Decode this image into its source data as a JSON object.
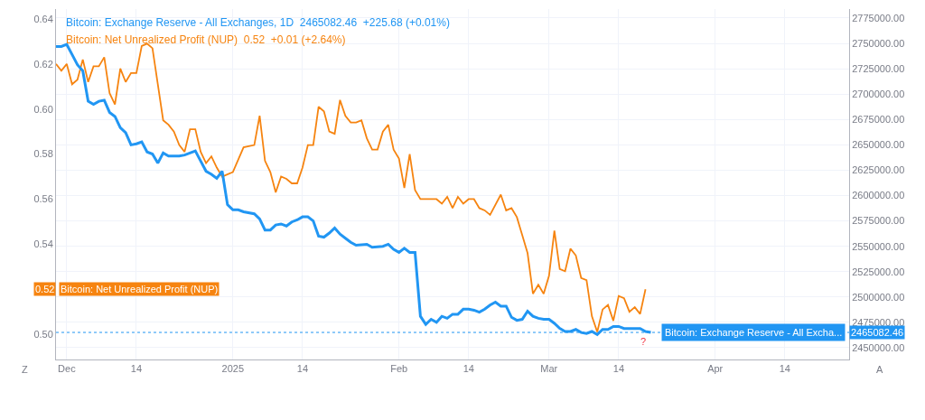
{
  "chart_data": {
    "type": "line",
    "series": [
      {
        "name": "Bitcoin: Exchange Reserve - All Exchanges, 1D",
        "color": "#2196f3",
        "axis": "y2",
        "x": [
          "2024-11-29",
          "2024-11-30",
          "2024-12-01",
          "2024-12-02",
          "2024-12-03",
          "2024-12-04",
          "2024-12-05",
          "2024-12-06",
          "2024-12-07",
          "2024-12-08",
          "2024-12-09",
          "2024-12-10",
          "2024-12-11",
          "2024-12-12",
          "2024-12-13",
          "2024-12-14",
          "2024-12-15",
          "2024-12-16",
          "2024-12-17",
          "2024-12-18",
          "2024-12-19",
          "2024-12-20",
          "2024-12-22",
          "2024-12-23",
          "2024-12-25",
          "2024-12-26",
          "2024-12-27",
          "2024-12-28",
          "2024-12-29",
          "2024-12-30",
          "2024-12-31",
          "2025-01-01",
          "2025-01-02",
          "2025-01-03",
          "2025-01-05",
          "2025-01-06",
          "2025-01-07",
          "2025-01-08",
          "2025-01-09",
          "2025-01-10",
          "2025-01-11",
          "2025-01-12",
          "2025-01-13",
          "2025-01-14",
          "2025-01-15",
          "2025-01-16",
          "2025-01-17",
          "2025-01-18",
          "2025-01-19",
          "2025-01-20",
          "2025-01-21",
          "2025-01-22",
          "2025-01-23",
          "2025-01-24",
          "2025-01-26",
          "2025-01-27",
          "2025-01-29",
          "2025-01-30",
          "2025-01-31",
          "2025-02-01",
          "2025-02-02",
          "2025-02-03",
          "2025-02-04",
          "2025-02-05",
          "2025-02-06",
          "2025-02-07",
          "2025-02-08",
          "2025-02-09",
          "2025-02-10",
          "2025-02-11",
          "2025-02-12",
          "2025-02-13",
          "2025-02-14",
          "2025-02-15",
          "2025-02-16",
          "2025-02-17",
          "2025-02-18",
          "2025-02-19",
          "2025-02-20",
          "2025-02-21",
          "2025-02-22",
          "2025-02-23",
          "2025-02-24",
          "2025-02-25",
          "2025-02-26",
          "2025-02-27",
          "2025-02-28",
          "2025-03-01",
          "2025-03-02",
          "2025-03-03",
          "2025-03-04",
          "2025-03-05",
          "2025-03-06",
          "2025-03-07",
          "2025-03-08",
          "2025-03-09",
          "2025-03-10",
          "2025-03-11",
          "2025-03-12",
          "2025-03-13",
          "2025-03-14",
          "2025-03-15",
          "2025-03-16",
          "2025-03-18",
          "2025-03-19",
          "2025-03-20"
        ],
        "values": [
          2747000,
          2747000,
          2749000,
          2739000,
          2729000,
          2723000,
          2693000,
          2690000,
          2693000,
          2694000,
          2682000,
          2678000,
          2667000,
          2662000,
          2650000,
          2651000,
          2653000,
          2643000,
          2641000,
          2632000,
          2642000,
          2639000,
          2639000,
          2640000,
          2644000,
          2634000,
          2624000,
          2621000,
          2617000,
          2624000,
          2591000,
          2586000,
          2586000,
          2584000,
          2582000,
          2577000,
          2566000,
          2566000,
          2571000,
          2572000,
          2570000,
          2574000,
          2576000,
          2579000,
          2579000,
          2575000,
          2560000,
          2559000,
          2563000,
          2568000,
          2562000,
          2558000,
          2554000,
          2551000,
          2552000,
          2549000,
          2550000,
          2552000,
          2547000,
          2544000,
          2548000,
          2544000,
          2544000,
          2481000,
          2473000,
          2478000,
          2475000,
          2481000,
          2479000,
          2483000,
          2483000,
          2488000,
          2488000,
          2487000,
          2485000,
          2488000,
          2492000,
          2495000,
          2491000,
          2491000,
          2480000,
          2477000,
          2478000,
          2486000,
          2481000,
          2479000,
          2478000,
          2478000,
          2474000,
          2469000,
          2466000,
          2466000,
          2468000,
          2465000,
          2464000,
          2466000,
          2463000,
          2468000,
          2468000,
          2471000,
          2471000,
          2469000,
          2469000,
          2469000,
          2466000,
          2465082.46
        ]
      },
      {
        "name": "Bitcoin: Net Unrealized Profit (NUP)",
        "color": "#f68410",
        "x": [
          "2024-11-29",
          "2024-11-30",
          "2024-12-01",
          "2024-12-02",
          "2024-12-03",
          "2024-12-04",
          "2024-12-05",
          "2024-12-06",
          "2024-12-07",
          "2024-12-08",
          "2024-12-09",
          "2024-12-10",
          "2024-12-11",
          "2024-12-12",
          "2024-12-13",
          "2024-12-14",
          "2024-12-15",
          "2024-12-16",
          "2024-12-17",
          "2024-12-18",
          "2024-12-19",
          "2024-12-20",
          "2024-12-21",
          "2024-12-22",
          "2024-12-23",
          "2024-12-24",
          "2024-12-25",
          "2024-12-26",
          "2024-12-27",
          "2024-12-28",
          "2024-12-29",
          "2024-12-30",
          "2025-01-01",
          "2025-01-03",
          "2025-01-05",
          "2025-01-06",
          "2025-01-07",
          "2025-01-08",
          "2025-01-09",
          "2025-01-10",
          "2025-01-11",
          "2025-01-12",
          "2025-01-13",
          "2025-01-14",
          "2025-01-15",
          "2025-01-16",
          "2025-01-17",
          "2025-01-18",
          "2025-01-19",
          "2025-01-20",
          "2025-01-21",
          "2025-01-22",
          "2025-01-23",
          "2025-01-24",
          "2025-01-25",
          "2025-01-26",
          "2025-01-27",
          "2025-01-28",
          "2025-01-29",
          "2025-01-30",
          "2025-01-31",
          "2025-02-01",
          "2025-02-02",
          "2025-02-03",
          "2025-02-04",
          "2025-02-05",
          "2025-02-06",
          "2025-02-07",
          "2025-02-08",
          "2025-02-09",
          "2025-02-10",
          "2025-02-11",
          "2025-02-12",
          "2025-02-13",
          "2025-02-14",
          "2025-02-15",
          "2025-02-16",
          "2025-02-17",
          "2025-02-18",
          "2025-02-20",
          "2025-02-21",
          "2025-02-22",
          "2025-02-23",
          "2025-02-24",
          "2025-02-25",
          "2025-02-26",
          "2025-02-27",
          "2025-02-28",
          "2025-03-01",
          "2025-03-02",
          "2025-03-03",
          "2025-03-04",
          "2025-03-05",
          "2025-03-06",
          "2025-03-07",
          "2025-03-08",
          "2025-03-09",
          "2025-03-10",
          "2025-03-11",
          "2025-03-12",
          "2025-03-13",
          "2025-03-14",
          "2025-03-15",
          "2025-03-16",
          "2025-03-17",
          "2025-03-18",
          "2025-03-19"
        ],
        "values": [
          0.62,
          0.617,
          0.62,
          0.611,
          0.613,
          0.622,
          0.612,
          0.619,
          0.619,
          0.623,
          0.607,
          0.602,
          0.618,
          0.612,
          0.616,
          0.616,
          0.628,
          0.629,
          0.627,
          0.611,
          0.595,
          0.593,
          0.59,
          0.584,
          0.581,
          0.591,
          0.591,
          0.581,
          0.576,
          0.579,
          0.574,
          0.57,
          0.572,
          0.583,
          0.584,
          0.597,
          0.577,
          0.572,
          0.563,
          0.57,
          0.569,
          0.567,
          0.567,
          0.574,
          0.584,
          0.584,
          0.601,
          0.599,
          0.59,
          0.589,
          0.604,
          0.597,
          0.594,
          0.594,
          0.595,
          0.587,
          0.582,
          0.582,
          0.59,
          0.593,
          0.582,
          0.578,
          0.565,
          0.58,
          0.564,
          0.56,
          0.56,
          0.56,
          0.56,
          0.558,
          0.561,
          0.556,
          0.561,
          0.558,
          0.56,
          0.56,
          0.556,
          0.555,
          0.553,
          0.562,
          0.555,
          0.556,
          0.552,
          0.544,
          0.536,
          0.518,
          0.522,
          0.518,
          0.526,
          0.546,
          0.529,
          0.528,
          0.538,
          0.535,
          0.525,
          0.524,
          0.508,
          0.501,
          0.511,
          0.513,
          0.506,
          0.517,
          0.516,
          0.51,
          0.512,
          0.509,
          0.52
        ]
      }
    ],
    "xlim": [
      "2024-11-29",
      "2025-04-26"
    ],
    "xticks": [
      {
        "value": "2024-12-01",
        "label": "Dec"
      },
      {
        "value": "2024-12-14",
        "label": "14"
      },
      {
        "value": "2025-01-01",
        "label": "2025"
      },
      {
        "value": "2025-01-14",
        "label": "14"
      },
      {
        "value": "2025-02-01",
        "label": "Feb"
      },
      {
        "value": "2025-02-14",
        "label": "14"
      },
      {
        "value": "2025-03-01",
        "label": "Mar"
      },
      {
        "value": "2025-03-14",
        "label": "14"
      },
      {
        "value": "2025-04-01",
        "label": "Apr"
      },
      {
        "value": "2025-04-14",
        "label": "14"
      }
    ],
    "ylim": [
      0.4888,
      0.6444
    ],
    "yticks": [
      {
        "value": 0.5,
        "label": "0.50"
      },
      {
        "value": 0.54,
        "label": "0.54"
      },
      {
        "value": 0.56,
        "label": "0.56"
      },
      {
        "value": 0.58,
        "label": "0.58"
      },
      {
        "value": 0.6,
        "label": "0.60"
      },
      {
        "value": 0.62,
        "label": "0.62"
      },
      {
        "value": 0.64,
        "label": "0.64"
      }
    ],
    "y2lim": [
      2438400,
      2783900
    ],
    "y2ticks": [
      {
        "value": 2450000,
        "label": "2450000.00"
      },
      {
        "value": 2475000,
        "label": "2475000.00"
      },
      {
        "value": 2500000,
        "label": "2500000.00"
      },
      {
        "value": 2525000,
        "label": "2525000.00"
      },
      {
        "value": 2550000,
        "label": "2550000.00"
      },
      {
        "value": 2575000,
        "label": "2575000.00"
      },
      {
        "value": 2600000,
        "label": "2600000.00"
      },
      {
        "value": 2625000,
        "label": "2625000.00"
      },
      {
        "value": 2650000,
        "label": "2650000.00"
      },
      {
        "value": 2675000,
        "label": "2675000.00"
      },
      {
        "value": 2700000,
        "label": "2700000.00"
      },
      {
        "value": 2725000,
        "label": "2725000.00"
      },
      {
        "value": 2750000,
        "label": "2750000.00"
      },
      {
        "value": 2775000,
        "label": "2775000.00"
      }
    ],
    "ref_lines": [
      {
        "axis": "y2",
        "value": 2465082.46,
        "label": "Bitcoin: Exchange Reserve - All Excha...",
        "color": "#2196f3",
        "line_style": "dotted"
      }
    ],
    "annotations": [
      "2465082.46  +225.68 (+0.01%)",
      "0.52  +0.01 (+2.64%)",
      "Z",
      "A",
      "?",
      "0.52",
      "Bitcoin: Net Unrealized Profit (NUP)",
      "2465082.46"
    ],
    "grid": true,
    "legend": false,
    "marker": "none",
    "line_style": "solid"
  }
}
